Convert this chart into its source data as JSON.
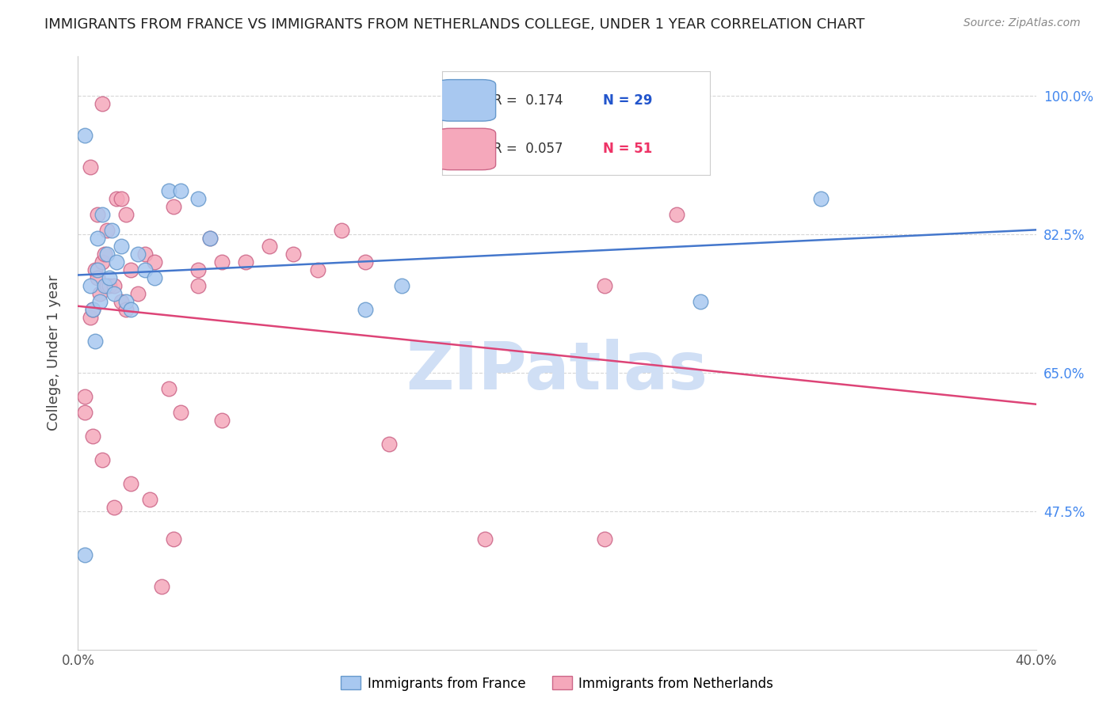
{
  "title": "IMMIGRANTS FROM FRANCE VS IMMIGRANTS FROM NETHERLANDS COLLEGE, UNDER 1 YEAR CORRELATION CHART",
  "source": "Source: ZipAtlas.com",
  "ylabel": "College, Under 1 year",
  "xmin": 0.0,
  "xmax": 0.4,
  "ymin": 0.3,
  "ymax": 1.05,
  "yticks": [
    0.475,
    0.65,
    0.825,
    1.0
  ],
  "ytick_labels": [
    "47.5%",
    "65.0%",
    "82.5%",
    "100.0%"
  ],
  "xticks": [
    0.0,
    0.1,
    0.2,
    0.3,
    0.4
  ],
  "xtick_labels": [
    "0.0%",
    "",
    "",
    "",
    "40.0%"
  ],
  "france_color": "#a8c8f0",
  "france_edge": "#6699cc",
  "netherlands_color": "#f5a8bb",
  "netherlands_edge": "#cc6688",
  "line_color_france": "#4477cc",
  "line_color_netherlands": "#dd4477",
  "bg_color": "#ffffff",
  "axis_label_color": "#444444",
  "tick_label_color_y": "#4488ee",
  "grid_color": "#cccccc",
  "title_color": "#222222",
  "source_color": "#888888",
  "watermark": "ZIPatlas",
  "watermark_color": "#d0dff5",
  "france_R": "0.174",
  "france_N": "29",
  "netherlands_R": "0.057",
  "netherlands_N": "51",
  "france_scatter_x": [
    0.003,
    0.005,
    0.006,
    0.007,
    0.008,
    0.008,
    0.009,
    0.01,
    0.011,
    0.012,
    0.013,
    0.014,
    0.015,
    0.016,
    0.018,
    0.02,
    0.022,
    0.025,
    0.028,
    0.032,
    0.038,
    0.043,
    0.05,
    0.055,
    0.12,
    0.135,
    0.26,
    0.31,
    0.003
  ],
  "france_scatter_y": [
    0.42,
    0.76,
    0.73,
    0.69,
    0.82,
    0.78,
    0.74,
    0.85,
    0.76,
    0.8,
    0.77,
    0.83,
    0.75,
    0.79,
    0.81,
    0.74,
    0.73,
    0.8,
    0.78,
    0.77,
    0.88,
    0.88,
    0.87,
    0.82,
    0.73,
    0.76,
    0.74,
    0.87,
    0.95
  ],
  "netherlands_scatter_x": [
    0.003,
    0.005,
    0.005,
    0.006,
    0.007,
    0.008,
    0.008,
    0.009,
    0.01,
    0.01,
    0.011,
    0.012,
    0.012,
    0.013,
    0.015,
    0.015,
    0.016,
    0.018,
    0.018,
    0.02,
    0.02,
    0.022,
    0.022,
    0.025,
    0.028,
    0.03,
    0.032,
    0.035,
    0.038,
    0.04,
    0.04,
    0.043,
    0.05,
    0.05,
    0.055,
    0.06,
    0.06,
    0.07,
    0.08,
    0.09,
    0.1,
    0.11,
    0.12,
    0.13,
    0.17,
    0.22,
    0.25,
    0.003,
    0.006,
    0.01,
    0.22
  ],
  "netherlands_scatter_y": [
    0.62,
    0.91,
    0.72,
    0.73,
    0.78,
    0.77,
    0.85,
    0.75,
    0.79,
    0.99,
    0.8,
    0.76,
    0.83,
    0.76,
    0.76,
    0.48,
    0.87,
    0.74,
    0.87,
    0.73,
    0.85,
    0.78,
    0.51,
    0.75,
    0.8,
    0.49,
    0.79,
    0.38,
    0.63,
    0.86,
    0.44,
    0.6,
    0.78,
    0.76,
    0.82,
    0.79,
    0.59,
    0.79,
    0.81,
    0.8,
    0.78,
    0.83,
    0.79,
    0.56,
    0.44,
    0.76,
    0.85,
    0.6,
    0.57,
    0.54,
    0.44
  ]
}
